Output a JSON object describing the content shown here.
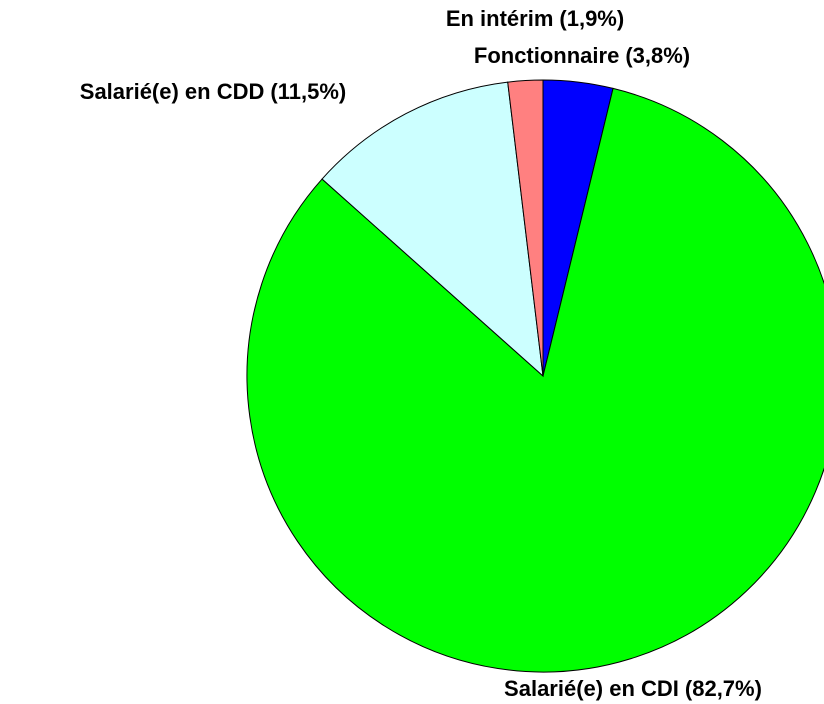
{
  "chart_data": {
    "type": "pie",
    "categories": [
      "Fonctionnaire",
      "Salarié(e) en CDI",
      "Salarié(e) en CDD",
      "En intérim"
    ],
    "values": [
      3.8,
      82.7,
      11.5,
      1.9
    ],
    "value_labels": [
      "(3,8%)",
      "(82,7%)",
      "(11,5%)",
      "(1,9%)"
    ],
    "colors": [
      "#0000ff",
      "#00ff00",
      "#ccffff",
      "#ff8080"
    ]
  }
}
